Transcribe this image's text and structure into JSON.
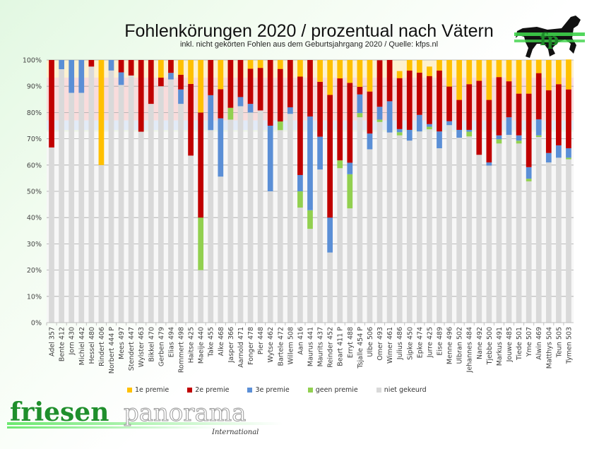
{
  "header": {
    "title": "Fohlenkörungen 2020 / prozentual nach Vätern",
    "subtitle": "inkl. nicht gekörten Fohlen aus dem Geburtsjahrgang 2020 / Quelle: kfps.nl"
  },
  "logos": {
    "bottom_word1": "friesen",
    "bottom_word2": "panorama",
    "bottom_tagline": "International",
    "top_mark": "fp",
    "top_icon": "horse-icon"
  },
  "chart_data": {
    "type": "bar",
    "stacked": true,
    "title": "Fohlenkörungen 2020 / prozentual nach Vätern",
    "subtitle": "inkl. nicht gekörten Fohlen aus dem Geburtsjahrgang 2020 / Quelle: kfps.nl",
    "xlabel": "",
    "ylabel": "",
    "ylim": [
      0,
      100
    ],
    "yticks": [
      "0%",
      "10%",
      "20%",
      "30%",
      "40%",
      "50%",
      "60%",
      "70%",
      "80%",
      "90%",
      "100%"
    ],
    "grid": true,
    "legend_position": "bottom",
    "background_bands": [
      {
        "name": "1e premie (gemiddeld)",
        "from": 93.3,
        "to": 100,
        "color": "#fdf1d0"
      },
      {
        "name": "2e premie (gemiddeld)",
        "from": 77.0,
        "to": 93.3,
        "color": "#f9dcdc"
      },
      {
        "name": "3e premie (gemiddeld)",
        "from": 73.3,
        "to": 77.0,
        "color": "#e3ebf7"
      },
      {
        "name": "geen premie (gemiddeld)",
        "from": 72.7,
        "to": 73.3,
        "color": "#eef5e6"
      },
      {
        "name": "niet gekeurd (gemiddeld)",
        "from": 0,
        "to": 72.7,
        "color": "#f7f7f7"
      }
    ],
    "categories": [
      "Adel 357",
      "Bente 412",
      "Jorn 430",
      "Michiel 442",
      "Hessel 480",
      "Rindert 406",
      "Norbert 444 P",
      "Mees 497",
      "Stendert 447",
      "Wylster 463",
      "Bikkel 470",
      "Gerben 479",
      "Elias 494",
      "Rommert 498",
      "Haitse 425",
      "Maeije 440",
      "Take 455",
      "Alke 468",
      "Jasper 366",
      "Aarnold 471",
      "Fonger 478",
      "Pier 448",
      "Wytse 462",
      "Bartele 472",
      "Willem 508",
      "Aan 416",
      "Maurus 441",
      "Maurits 437",
      "Reinder 452",
      "Beart 411 P",
      "Erryt 488",
      "Tsjalle 454 P",
      "Ulbe 506",
      "Omer 493",
      "Wimer 461",
      "Julius 486",
      "Sipke 450",
      "Epke 474",
      "Jurre 425",
      "Eise 489",
      "Menne 496",
      "Ulbran 502",
      "Jehannes 484",
      "Nane 492",
      "Tjebbe 500",
      "Markus 491",
      "Jouwe 485",
      "Tiede 501",
      "Yme 507",
      "Alwin 469",
      "Matthys 504",
      "Teun 505",
      "Tymen 503"
    ],
    "series": [
      {
        "name": "niet gekeurd",
        "color": "#d9d9d9",
        "values": [
          66.7,
          96.5,
          87.5,
          87.5,
          97.5,
          60,
          96,
          90.5,
          94.1,
          72.7,
          83.3,
          90,
          92.6,
          83.3,
          63.6,
          20,
          73.3,
          55.6,
          77.3,
          82.4,
          80,
          80.8,
          50,
          73.3,
          79.5,
          43.8,
          35.7,
          58.3,
          26.7,
          58.8,
          43.5,
          78.2,
          66,
          76.4,
          72.4,
          71.3,
          69.3,
          72.8,
          73.6,
          66.4,
          75.2,
          70.4,
          70.9,
          63.9,
          59.8,
          68.2,
          71.5,
          68.2,
          53.8,
          70.7,
          61,
          62.8,
          62.2
        ]
      },
      {
        "name": "geen premie",
        "color": "#92d050",
        "values": [
          0,
          0,
          0,
          0,
          0,
          0,
          0,
          0,
          0,
          0,
          0,
          0,
          0,
          0,
          0,
          20,
          0,
          0,
          4.5,
          0,
          0,
          0,
          0,
          3.3,
          0,
          6.2,
          7.1,
          0,
          0,
          3,
          13,
          1.6,
          0,
          0.9,
          0,
          1.2,
          0,
          0,
          1,
          0,
          0,
          0,
          1.8,
          0,
          0,
          1.6,
          0,
          1.1,
          1,
          0.6,
          0,
          0,
          0.6
        ]
      },
      {
        "name": "3e premie",
        "color": "#5b8fd6",
        "values": [
          0,
          3.5,
          12.5,
          12.5,
          0,
          0,
          4,
          4.8,
          0,
          0,
          0,
          0,
          2.5,
          5.5,
          0,
          0,
          13.3,
          22.2,
          0,
          3.5,
          3.3,
          0,
          25,
          0,
          2.5,
          6.2,
          35.7,
          12.5,
          13.3,
          0,
          4.4,
          7.1,
          6,
          4.9,
          11.9,
          1.2,
          4.1,
          6.3,
          1,
          6.4,
          1.5,
          3,
          0.7,
          0,
          1.2,
          1.5,
          6.7,
          2,
          4.4,
          6.1,
          3.6,
          4.7,
          3.6
        ]
      },
      {
        "name": "2e premie",
        "color": "#c00000",
        "values": [
          33.3,
          0,
          0,
          0,
          2.5,
          0,
          0,
          4.7,
          5.9,
          27.3,
          16.7,
          3.3,
          4.9,
          5.6,
          27.3,
          40,
          13.4,
          11.1,
          18.2,
          14.1,
          13.4,
          16.2,
          25,
          20,
          18,
          37.5,
          21.5,
          20.9,
          46.7,
          31.2,
          30.4,
          2.9,
          16,
          17.7,
          15.7,
          19.4,
          22.6,
          16.1,
          18.3,
          23.2,
          13.2,
          11.4,
          17.4,
          28.2,
          23.8,
          22.2,
          13.7,
          15.9,
          28,
          17.6,
          23.9,
          23.3,
          22.4
        ]
      },
      {
        "name": "1e premie",
        "color": "#ffc000",
        "values": [
          0,
          0,
          0,
          0,
          0,
          40,
          0,
          0,
          0,
          0,
          0,
          6.7,
          0,
          5.6,
          9.1,
          20,
          0,
          11.1,
          0,
          0,
          3.3,
          3,
          0,
          3.4,
          0,
          6.3,
          0,
          8.3,
          13.3,
          7,
          8.7,
          10.2,
          12,
          0,
          0,
          2.7,
          4,
          4.8,
          3.6,
          4,
          10.1,
          15.2,
          9.2,
          7.9,
          15.2,
          6.5,
          8.1,
          12.8,
          12.8,
          5.1,
          11.5,
          9.2,
          11.4
        ]
      }
    ]
  }
}
